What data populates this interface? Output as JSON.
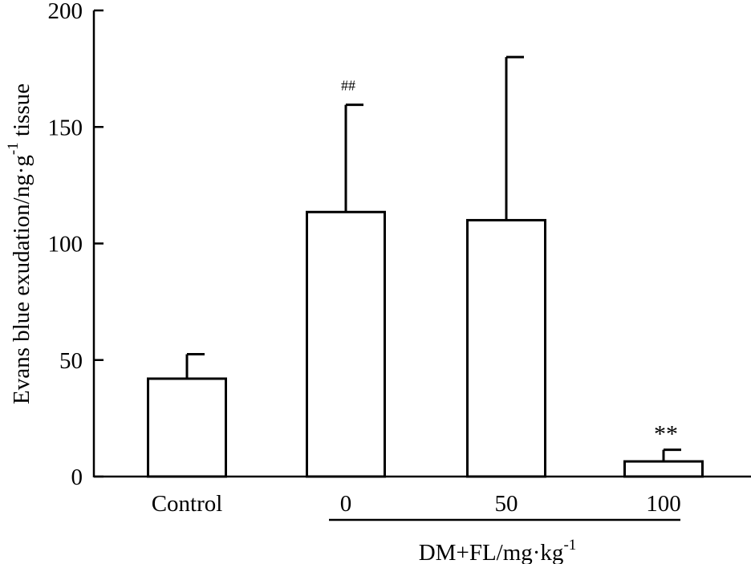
{
  "chart_data": {
    "type": "bar",
    "title": "",
    "categories": [
      "Control",
      "0",
      "50",
      "100"
    ],
    "values": [
      42,
      113.5,
      110,
      6.5
    ],
    "errors": [
      10.5,
      46,
      70,
      5
    ],
    "annotations": [
      "",
      "##",
      "",
      "**"
    ],
    "ylabel": "Evans blue exudation/ng·g",
    "ylabel_sup": "-1",
    "ylabel_tail": " tissue",
    "xgroup_label": "DM+FL/mg·kg",
    "xgroup_label_sup": "-1",
    "ylim": [
      0,
      200
    ],
    "yticks": [
      0,
      50,
      100,
      150,
      200
    ],
    "grid": false,
    "legend": "none"
  }
}
